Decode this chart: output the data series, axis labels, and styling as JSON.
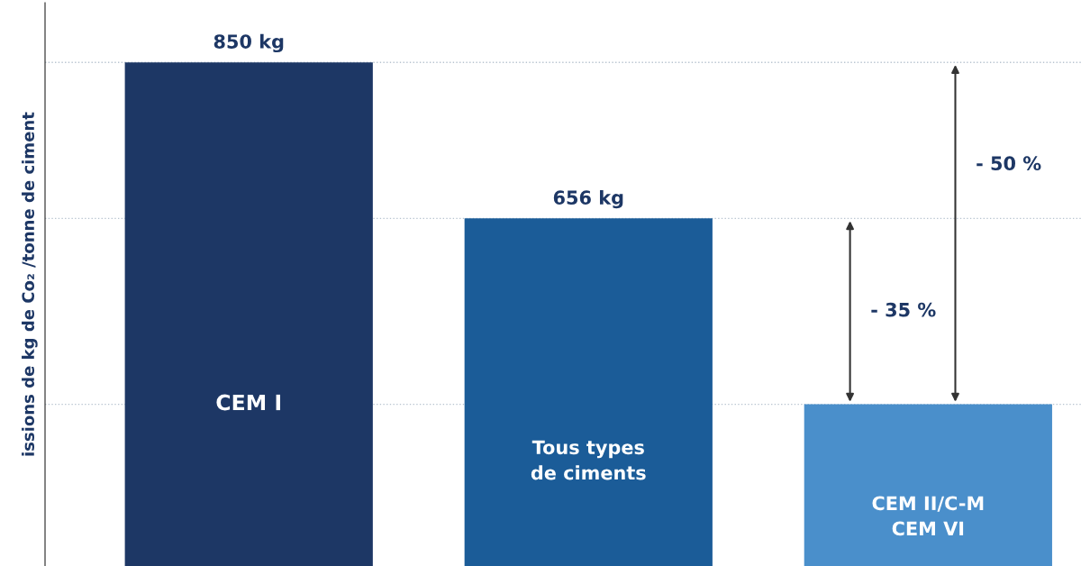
{
  "chart_data": {
    "type": "bar",
    "ylabel": "issions de kg de Co₂ /tonne de ciment",
    "categories": [
      "CEM I",
      "Tous types\nde ciments",
      "CEM II/C-M\nCEM VI"
    ],
    "values": [
      850,
      656,
      425
    ],
    "colors": [
      "#1d3765",
      "#1b5c98",
      "#4a8fcb"
    ],
    "value_labels": [
      "850 kg",
      "656 kg",
      null
    ],
    "ylim": [
      224,
      924
    ],
    "ref_lines": [
      {
        "axis": "y",
        "value": 850,
        "color": "#b8c4d0",
        "line_style": "dotted"
      },
      {
        "axis": "y",
        "value": 656,
        "color": "#b8c4d0",
        "line_style": "dotted"
      },
      {
        "axis": "y",
        "value": 425,
        "color": "#b8c4d0",
        "line_style": "dotted"
      }
    ],
    "annotations": [
      "- 35 %",
      "- 50 %"
    ]
  }
}
